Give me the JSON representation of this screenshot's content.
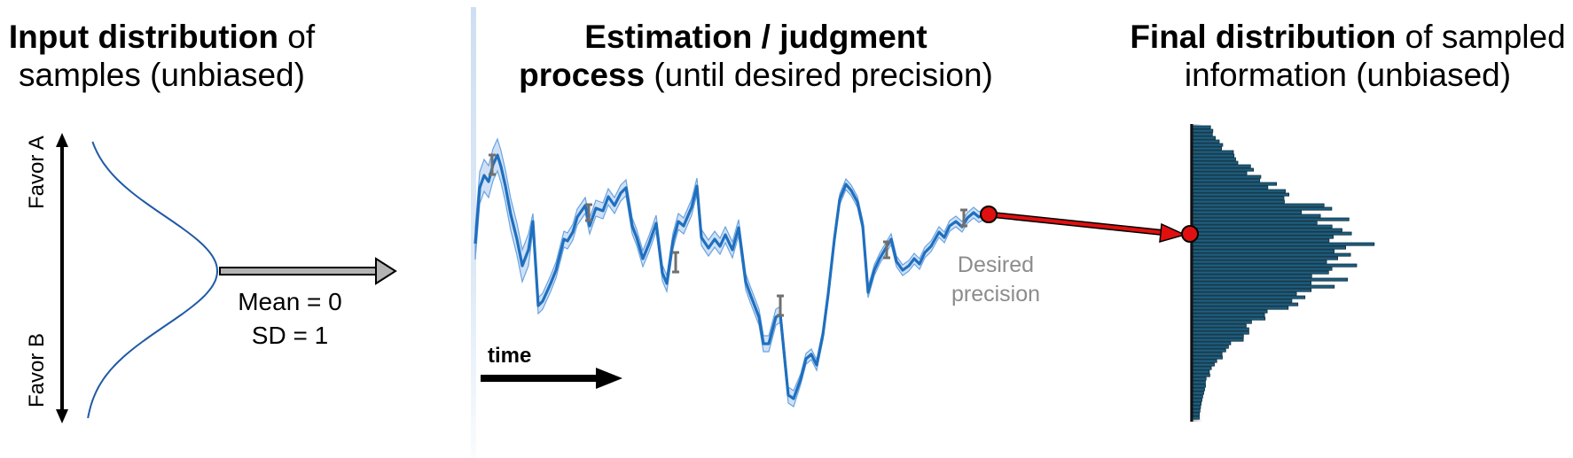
{
  "panels": {
    "input": {
      "title_bold": "Input distribution",
      "title_rest_line1": " of",
      "title_line2": "samples (unbiased)",
      "axis_top": "Favor A",
      "axis_bottom": "Favor B",
      "mean_label": "Mean = 0",
      "sd_label": "SD = 1"
    },
    "process": {
      "title_line1": "Estimation / judgment",
      "title_bold_line2": "process",
      "title_rest_line2": " (until desired precision)",
      "time_label": "time",
      "desired_line1": "Desired",
      "desired_line2": "precision"
    },
    "final": {
      "title_bold": "Final distribution",
      "title_rest_line1": " of sampled",
      "title_line2": "information (unbiased)"
    }
  },
  "colors": {
    "curve": "#1f6fbf",
    "band": "#a9c9ef",
    "errorbar": "#707070",
    "histogram": "#1f5f80",
    "red_marker": "#e01010",
    "gray_arrow": "#b3b3b3"
  },
  "icons": [
    "double-arrow-vertical",
    "gray-arrow-right",
    "black-arrow-right",
    "red-arrow-right"
  ]
}
